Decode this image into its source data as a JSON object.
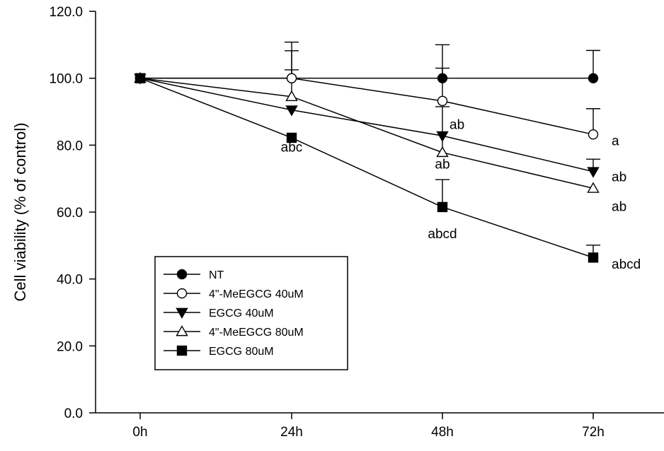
{
  "chart_data": {
    "type": "line",
    "title": "",
    "xlabel": "",
    "ylabel": "Cell viability (% of control)",
    "categories": [
      "0h",
      "24h",
      "48h",
      "72h"
    ],
    "ylim": [
      0,
      120
    ],
    "yticks": [
      "0.0",
      "20.0",
      "40.0",
      "60.0",
      "80.0",
      "100.0",
      "120.0"
    ],
    "grid": false,
    "legend_position": "lower-left",
    "series": [
      {
        "name": "NT",
        "marker": "circle-filled",
        "values": [
          100,
          100,
          100,
          100
        ],
        "error_upper": [
          null,
          102.5,
          103,
          108.3
        ]
      },
      {
        "name": "4\"-MeEGCG 40uM",
        "marker": "circle-open",
        "values": [
          100,
          100,
          93.2,
          83.2
        ],
        "error_upper": [
          null,
          108.2,
          110,
          90.9
        ]
      },
      {
        "name": "EGCG 40uM",
        "marker": "triangle-down-filled",
        "values": [
          100,
          90.5,
          82.8,
          72.1
        ],
        "error_upper": [
          null,
          null,
          null,
          75.8
        ]
      },
      {
        "name": "4\"-MeEGCG 80uM",
        "marker": "triangle-up-open",
        "values": [
          100,
          94.5,
          77.8,
          67.1
        ],
        "error_upper": [
          null,
          110.8,
          91.5,
          null
        ]
      },
      {
        "name": "EGCG 80uM",
        "marker": "square-filled",
        "values": [
          100,
          82.2,
          61.5,
          46.4
        ],
        "error_upper": [
          null,
          null,
          69.7,
          50.1
        ]
      }
    ],
    "annotations": [
      {
        "text": "abc",
        "x": "24h",
        "y": 79.5
      },
      {
        "text": "ab",
        "x": "48h",
        "y": 86.3
      },
      {
        "text": "ab",
        "x": "48h",
        "y": 74.5
      },
      {
        "text": "abcd",
        "x": "48h",
        "y": 53.7
      },
      {
        "text": "a",
        "x": "72h",
        "y": 81.4
      },
      {
        "text": "ab",
        "x": "72h",
        "y": 70.7
      },
      {
        "text": "ab",
        "x": "72h",
        "y": 61.8
      },
      {
        "text": "abcd",
        "x": "72h",
        "y": 44.6
      }
    ]
  }
}
